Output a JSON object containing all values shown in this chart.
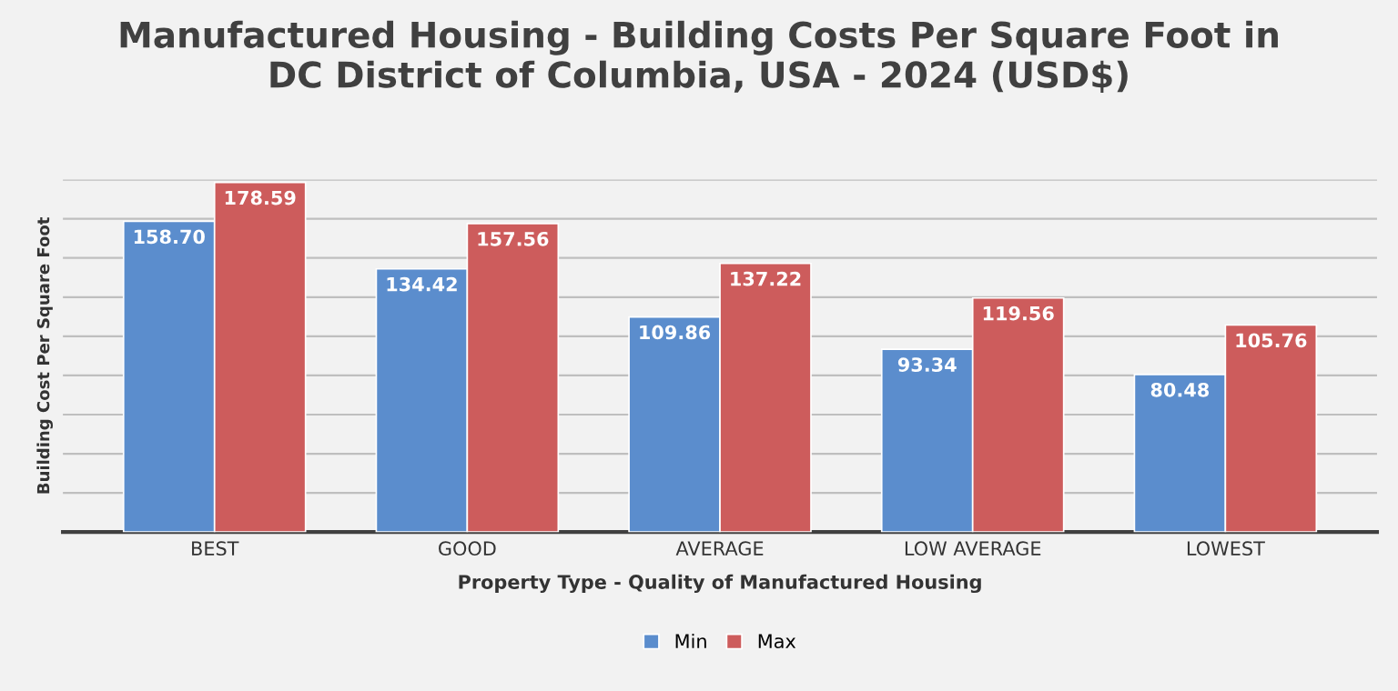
{
  "chart_data": {
    "type": "bar",
    "title": "Manufactured Housing - Building Costs Per Square Foot in\nDC District of Columbia, USA - 2024 (USD$)",
    "xlabel": "Property Type - Quality of Manufactured Housing",
    "ylabel": "Building Cost Per Square Foot",
    "categories": [
      "BEST",
      "GOOD",
      "AVERAGE",
      "LOW AVERAGE",
      "LOWEST"
    ],
    "series": [
      {
        "name": "Min",
        "color": "#5b8dcd",
        "values": [
          158.7,
          134.42,
          109.86,
          93.34,
          80.48
        ],
        "value_labels": [
          "158.70",
          "134.42",
          "109.86",
          "93.34",
          "80.48"
        ]
      },
      {
        "name": "Max",
        "color": "#cd5c5c",
        "values": [
          178.59,
          157.56,
          137.22,
          119.56,
          105.76
        ],
        "value_labels": [
          "178.59",
          "157.56",
          "137.22",
          "119.56",
          "105.76"
        ]
      }
    ],
    "ylim": [
      0,
      180
    ],
    "yticks": [
      {
        "value": 0,
        "label": null
      },
      {
        "value": 20,
        "label": null
      },
      {
        "value": 40,
        "label": null
      },
      {
        "value": 60,
        "label": null
      },
      {
        "value": 80,
        "label": null
      },
      {
        "value": 100,
        "label": null
      },
      {
        "value": 120,
        "label": null
      },
      {
        "value": 140,
        "label": null
      },
      {
        "value": 160,
        "label": null
      },
      {
        "value": 180,
        "label": null
      }
    ],
    "tick_labels": "x",
    "grid": "y",
    "legend": "bottom"
  }
}
